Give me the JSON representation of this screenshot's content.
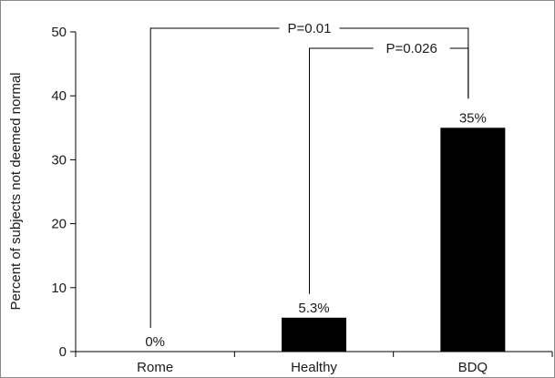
{
  "chart_data": {
    "type": "bar",
    "categories": [
      "Rome",
      "Healthy",
      "BDQ"
    ],
    "values": [
      0,
      5.3,
      35
    ],
    "data_labels": [
      "0%",
      "5.3%",
      "35%"
    ],
    "ylabel": "Percent of subjects not deemed normal",
    "xlabel": "",
    "ylim": [
      0,
      50
    ],
    "yticks": [
      0,
      10,
      20,
      30,
      40,
      50
    ],
    "bar_color": "#000000",
    "grid": false,
    "comparisons": [
      {
        "from": "Rome",
        "to": "BDQ",
        "label": "P=0.01"
      },
      {
        "from": "Healthy",
        "to": "BDQ",
        "label": "P=0.026"
      }
    ]
  }
}
